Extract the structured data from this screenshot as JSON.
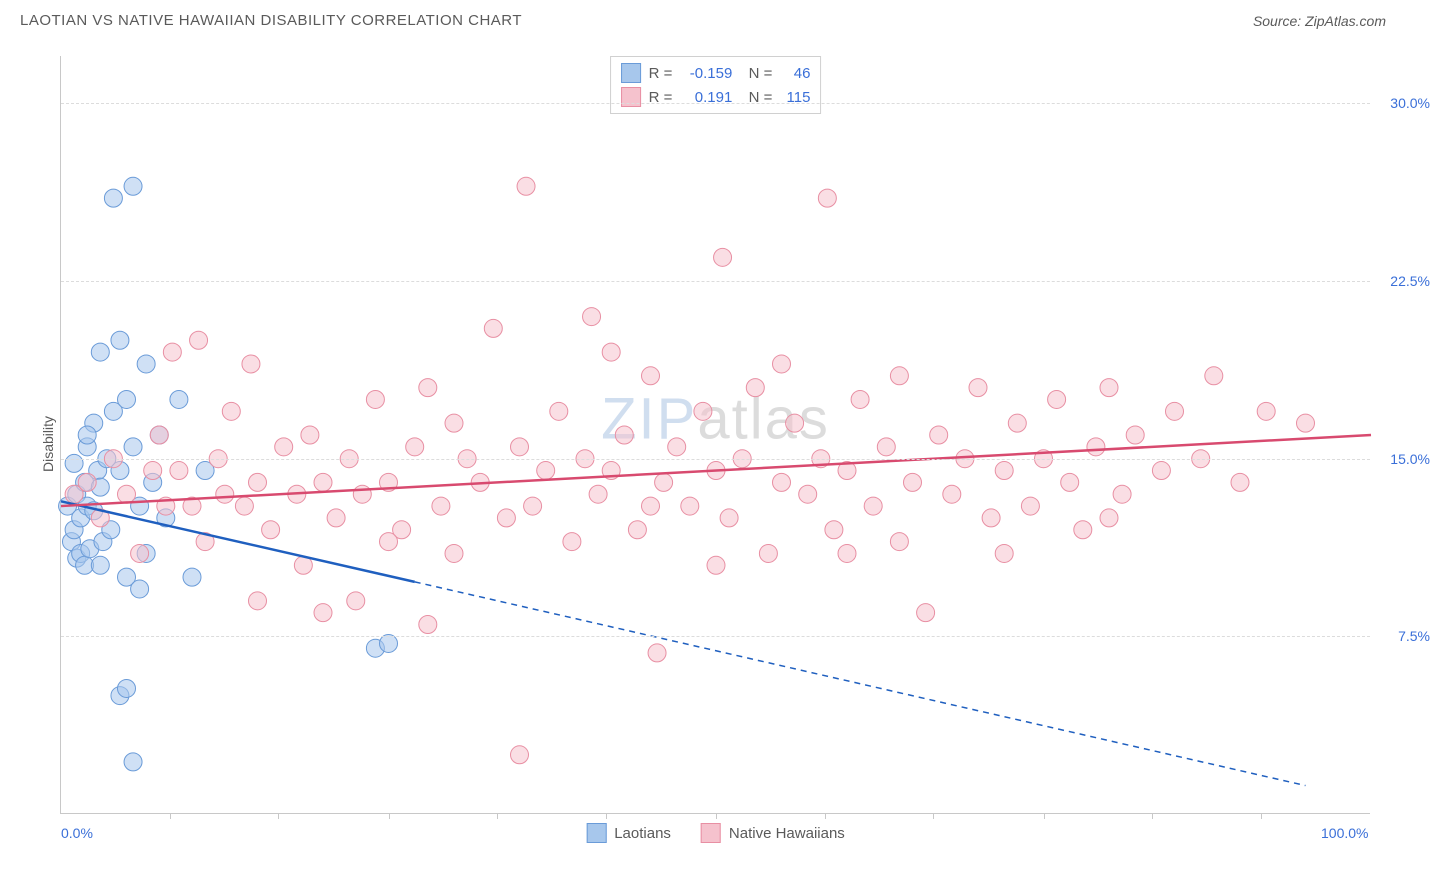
{
  "header": {
    "title": "LAOTIAN VS NATIVE HAWAIIAN DISABILITY CORRELATION CHART",
    "source": "Source: ZipAtlas.com"
  },
  "watermark": {
    "part1": "ZIP",
    "part2": "atlas"
  },
  "chart": {
    "type": "scatter",
    "ylabel": "Disability",
    "xlim": [
      0,
      100
    ],
    "ylim": [
      0,
      32
    ],
    "background_color": "#ffffff",
    "grid_color": "#dcdcdc",
    "axis_color": "#c8c8c8",
    "tick_color": "#3a6fd8",
    "label_color": "#5a5a5a",
    "label_fontsize": 14,
    "yticks": [
      {
        "value": 7.5,
        "label": "7.5%"
      },
      {
        "value": 15.0,
        "label": "15.0%"
      },
      {
        "value": 22.5,
        "label": "22.5%"
      },
      {
        "value": 30.0,
        "label": "30.0%"
      }
    ],
    "xticks_minor": [
      8.3,
      16.6,
      25,
      33.3,
      41.6,
      50,
      58.3,
      66.6,
      75,
      83.3,
      91.6
    ],
    "xticks_labeled": [
      {
        "value": 0,
        "label": "0.0%"
      },
      {
        "value": 100,
        "label": "100.0%"
      }
    ],
    "marker_radius": 9,
    "marker_opacity": 0.55,
    "line_width": 2.5,
    "series": [
      {
        "name": "Laotians",
        "fill_color": "#a7c7ec",
        "stroke_color": "#6a9bd8",
        "line_color": "#1f5fbf",
        "r_value": "-0.159",
        "n_value": "46",
        "trend": {
          "x1": 0,
          "y1": 13.2,
          "x2": 27,
          "y2": 9.8,
          "solid": true
        },
        "trend_ext": {
          "x1": 27,
          "y1": 9.8,
          "x2": 95,
          "y2": 1.2,
          "solid": false
        },
        "points": [
          [
            0.5,
            13.0
          ],
          [
            0.8,
            11.5
          ],
          [
            1.0,
            12.0
          ],
          [
            1.0,
            14.8
          ],
          [
            1.2,
            10.8
          ],
          [
            1.2,
            13.5
          ],
          [
            1.5,
            11.0
          ],
          [
            1.5,
            12.5
          ],
          [
            1.8,
            14.0
          ],
          [
            1.8,
            10.5
          ],
          [
            2.0,
            15.5
          ],
          [
            2.0,
            13.0
          ],
          [
            2.2,
            11.2
          ],
          [
            2.5,
            12.8
          ],
          [
            2.5,
            16.5
          ],
          [
            2.8,
            14.5
          ],
          [
            3.0,
            13.8
          ],
          [
            3.0,
            19.5
          ],
          [
            3.2,
            11.5
          ],
          [
            3.5,
            15.0
          ],
          [
            3.8,
            12.0
          ],
          [
            4.0,
            17.0
          ],
          [
            4.0,
            26.0
          ],
          [
            4.5,
            14.5
          ],
          [
            4.5,
            20.0
          ],
          [
            5.0,
            10.0
          ],
          [
            5.0,
            17.5
          ],
          [
            5.5,
            15.5
          ],
          [
            5.5,
            26.5
          ],
          [
            6.0,
            13.0
          ],
          [
            6.5,
            11.0
          ],
          [
            6.5,
            19.0
          ],
          [
            7.0,
            14.0
          ],
          [
            7.5,
            16.0
          ],
          [
            8.0,
            12.5
          ],
          [
            4.5,
            5.0
          ],
          [
            5.0,
            5.3
          ],
          [
            6.0,
            9.5
          ],
          [
            9.0,
            17.5
          ],
          [
            10.0,
            10.0
          ],
          [
            11.0,
            14.5
          ],
          [
            5.5,
            2.2
          ],
          [
            24.0,
            7.0
          ],
          [
            25.0,
            7.2
          ],
          [
            2.0,
            16.0
          ],
          [
            3.0,
            10.5
          ]
        ]
      },
      {
        "name": "Native Hawaiians",
        "fill_color": "#f5c2cd",
        "stroke_color": "#e88fa3",
        "line_color": "#d84a6f",
        "r_value": "0.191",
        "n_value": "115",
        "trend": {
          "x1": 0,
          "y1": 13.0,
          "x2": 100,
          "y2": 16.0,
          "solid": true
        },
        "points": [
          [
            1.0,
            13.5
          ],
          [
            2.0,
            14.0
          ],
          [
            3.0,
            12.5
          ],
          [
            4.0,
            15.0
          ],
          [
            5.0,
            13.5
          ],
          [
            6.0,
            11.0
          ],
          [
            7.0,
            14.5
          ],
          [
            7.5,
            16.0
          ],
          [
            8.0,
            13.0
          ],
          [
            8.5,
            19.5
          ],
          [
            9.0,
            14.5
          ],
          [
            10.0,
            13.0
          ],
          [
            10.5,
            20.0
          ],
          [
            11.0,
            11.5
          ],
          [
            12.0,
            15.0
          ],
          [
            12.5,
            13.5
          ],
          [
            13.0,
            17.0
          ],
          [
            14.0,
            13.0
          ],
          [
            14.5,
            19.0
          ],
          [
            15.0,
            14.0
          ],
          [
            16.0,
            12.0
          ],
          [
            17.0,
            15.5
          ],
          [
            18.0,
            13.5
          ],
          [
            18.5,
            10.5
          ],
          [
            19.0,
            16.0
          ],
          [
            20.0,
            14.0
          ],
          [
            21.0,
            12.5
          ],
          [
            22.0,
            15.0
          ],
          [
            22.5,
            9.0
          ],
          [
            23.0,
            13.5
          ],
          [
            24.0,
            17.5
          ],
          [
            25.0,
            14.0
          ],
          [
            26.0,
            12.0
          ],
          [
            27.0,
            15.5
          ],
          [
            28.0,
            18.0
          ],
          [
            29.0,
            13.0
          ],
          [
            30.0,
            11.0
          ],
          [
            31.0,
            15.0
          ],
          [
            32.0,
            14.0
          ],
          [
            33.0,
            20.5
          ],
          [
            34.0,
            12.5
          ],
          [
            35.0,
            15.5
          ],
          [
            35.5,
            26.5
          ],
          [
            36.0,
            13.0
          ],
          [
            37.0,
            14.5
          ],
          [
            38.0,
            17.0
          ],
          [
            39.0,
            11.5
          ],
          [
            40.0,
            15.0
          ],
          [
            40.5,
            21.0
          ],
          [
            41.0,
            13.5
          ],
          [
            42.0,
            14.5
          ],
          [
            43.0,
            16.0
          ],
          [
            44.0,
            12.0
          ],
          [
            45.0,
            18.5
          ],
          [
            45.5,
            6.8
          ],
          [
            46.0,
            14.0
          ],
          [
            47.0,
            15.5
          ],
          [
            48.0,
            13.0
          ],
          [
            49.0,
            17.0
          ],
          [
            50.0,
            14.5
          ],
          [
            50.5,
            23.5
          ],
          [
            51.0,
            12.5
          ],
          [
            52.0,
            15.0
          ],
          [
            53.0,
            18.0
          ],
          [
            54.0,
            11.0
          ],
          [
            55.0,
            14.0
          ],
          [
            56.0,
            16.5
          ],
          [
            57.0,
            13.5
          ],
          [
            58.0,
            15.0
          ],
          [
            58.5,
            26.0
          ],
          [
            59.0,
            12.0
          ],
          [
            60.0,
            14.5
          ],
          [
            61.0,
            17.5
          ],
          [
            62.0,
            13.0
          ],
          [
            63.0,
            15.5
          ],
          [
            64.0,
            11.5
          ],
          [
            65.0,
            14.0
          ],
          [
            66.0,
            8.5
          ],
          [
            67.0,
            16.0
          ],
          [
            68.0,
            13.5
          ],
          [
            69.0,
            15.0
          ],
          [
            70.0,
            18.0
          ],
          [
            71.0,
            12.5
          ],
          [
            72.0,
            14.5
          ],
          [
            73.0,
            16.5
          ],
          [
            74.0,
            13.0
          ],
          [
            75.0,
            15.0
          ],
          [
            76.0,
            17.5
          ],
          [
            77.0,
            14.0
          ],
          [
            78.0,
            12.0
          ],
          [
            79.0,
            15.5
          ],
          [
            80.0,
            18.0
          ],
          [
            81.0,
            13.5
          ],
          [
            82.0,
            16.0
          ],
          [
            84.0,
            14.5
          ],
          [
            85.0,
            17.0
          ],
          [
            87.0,
            15.0
          ],
          [
            88.0,
            18.5
          ],
          [
            90.0,
            14.0
          ],
          [
            92.0,
            17.0
          ],
          [
            95.0,
            16.5
          ],
          [
            35.0,
            2.5
          ],
          [
            15.0,
            9.0
          ],
          [
            28.0,
            8.0
          ],
          [
            64.0,
            18.5
          ],
          [
            72.0,
            11.0
          ],
          [
            50.0,
            10.5
          ],
          [
            20.0,
            8.5
          ],
          [
            45.0,
            13.0
          ],
          [
            55.0,
            19.0
          ],
          [
            30.0,
            16.5
          ],
          [
            42.0,
            19.5
          ],
          [
            60.0,
            11.0
          ],
          [
            25.0,
            11.5
          ],
          [
            80.0,
            12.5
          ]
        ]
      }
    ]
  }
}
